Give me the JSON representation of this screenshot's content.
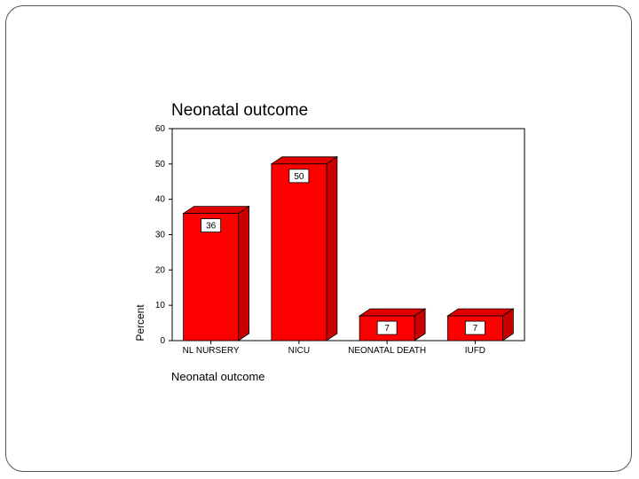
{
  "chart_data": {
    "type": "bar",
    "title": "Neonatal outcome",
    "xlabel": "Neonatal outcome",
    "ylabel": "Percent",
    "categories": [
      "NL NURSERY",
      "NICU",
      "NEONATAL DEATH",
      "IUFD"
    ],
    "values": [
      36,
      50,
      7,
      7
    ],
    "data_labels": [
      "36",
      "50",
      "7",
      "7"
    ],
    "ylim": [
      0,
      60
    ],
    "yticks": [
      0,
      10,
      20,
      30,
      40,
      50,
      60
    ],
    "grid": false,
    "bar_color": "#ff0000",
    "bar_top_color": "#e00000",
    "bar_side_color": "#c80000"
  }
}
